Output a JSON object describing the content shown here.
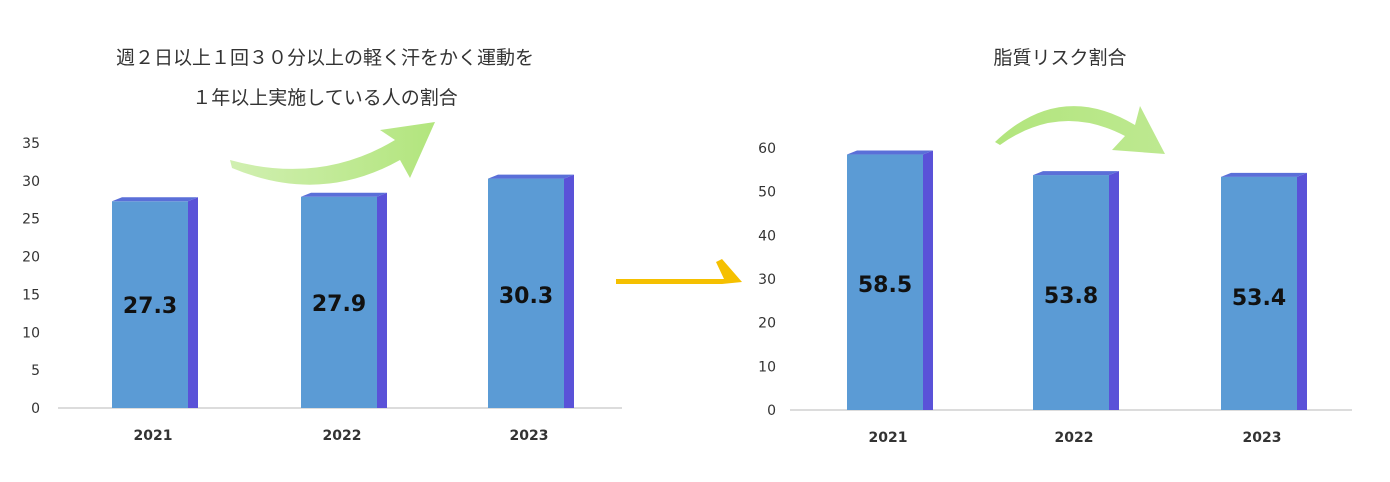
{
  "chart_data": [
    {
      "type": "bar",
      "title_lines": [
        "週２日以上１回３０分以上の軽く汗をかく運動を",
        "１年以上実施している人の割合"
      ],
      "categories": [
        "2021",
        "2022",
        "2023"
      ],
      "values": [
        27.3,
        27.9,
        30.3
      ],
      "value_labels": [
        "27.3",
        "27.9",
        "30.3"
      ],
      "ylim": [
        0,
        35
      ],
      "yticks": [
        0,
        5,
        10,
        15,
        20,
        25,
        30,
        35
      ],
      "ytick_labels": [
        "0",
        "5",
        "10",
        "15",
        "20",
        "25",
        "30",
        "35"
      ],
      "grid": false,
      "legend": "none",
      "trend_arrow": "up"
    },
    {
      "type": "bar",
      "title": "脂質リスク割合",
      "categories": [
        "2021",
        "2022",
        "2023"
      ],
      "values": [
        58.5,
        53.8,
        53.4
      ],
      "value_labels": [
        "58.5",
        "53.8",
        "53.4"
      ],
      "ylim": [
        0,
        60
      ],
      "yticks": [
        0,
        10,
        20,
        30,
        40,
        50,
        60
      ],
      "ytick_labels": [
        "0",
        "10",
        "20",
        "30",
        "40",
        "50",
        "60"
      ],
      "grid": false,
      "legend": "none",
      "trend_arrow": "down"
    }
  ],
  "colors": {
    "bar_front": "#5b9bd5",
    "bar_side": "#5a52d8",
    "bar_top": "#5a6fd8",
    "trend_arrow": "#b2e57d",
    "connector_arrow": "#f5c000",
    "axis": "#d0d0d0",
    "text": "#333333"
  }
}
